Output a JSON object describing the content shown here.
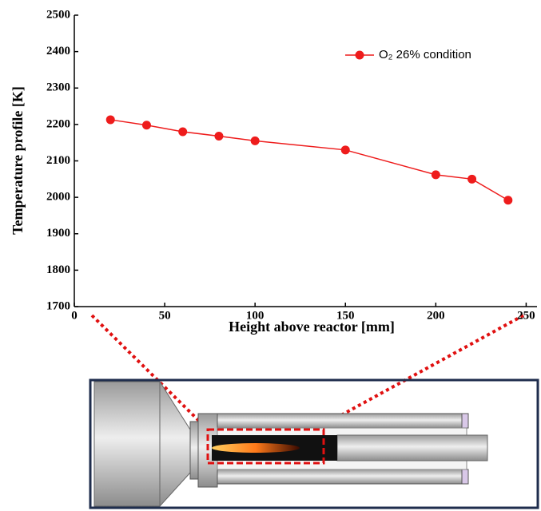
{
  "chart_data": {
    "type": "line",
    "xlabel": "Height above reactor [mm]",
    "ylabel": "Temperature profile [K]",
    "x": [
      20,
      40,
      60,
      80,
      100,
      150,
      200,
      220,
      240
    ],
    "series": [
      {
        "name": "O₂ 26% condition",
        "color": "#ee1c1c",
        "values": [
          2213,
          2198,
          2180,
          2168,
          2155,
          2130,
          2062,
          2050,
          1992
        ]
      }
    ],
    "xlim": [
      0,
      256
    ],
    "xticks": [
      0,
      50,
      100,
      150,
      200,
      250
    ],
    "ylim": [
      1700,
      2500
    ],
    "yticks": [
      1700,
      1800,
      1900,
      2000,
      2100,
      2200,
      2300,
      2400,
      2500
    ],
    "legend": "upper right"
  }
}
